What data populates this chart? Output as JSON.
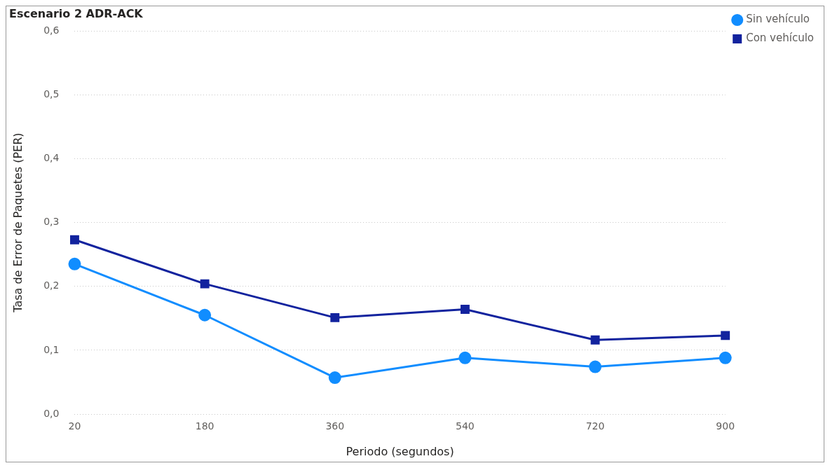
{
  "chart_data": {
    "type": "line",
    "title": "Escenario 2 ADR-ACK",
    "xlabel": "Periodo (segundos)",
    "ylabel": "Tasa de Error de Paquetes (PER)",
    "categories": [
      "20",
      "180",
      "360",
      "540",
      "720",
      "900"
    ],
    "series": [
      {
        "name": "Sin vehículo",
        "color": "#118dff",
        "marker": "circle",
        "values": [
          0.235,
          0.155,
          0.057,
          0.088,
          0.074,
          0.088
        ]
      },
      {
        "name": "Con vehículo",
        "color": "#12239e",
        "marker": "square",
        "values": [
          0.273,
          0.204,
          0.151,
          0.164,
          0.116,
          0.123
        ]
      }
    ],
    "ylim": [
      0,
      0.6
    ],
    "yticks": [
      {
        "value": 0,
        "label": "0,0"
      },
      {
        "value": 0.1,
        "label": "0,1"
      },
      {
        "value": 0.2,
        "label": "0,2"
      },
      {
        "value": 0.3,
        "label": "0,3"
      },
      {
        "value": 0.4,
        "label": "0,4"
      },
      {
        "value": 0.5,
        "label": "0,5"
      },
      {
        "value": 0.6,
        "label": "0,6"
      }
    ],
    "grid": "y",
    "legend": "top right"
  }
}
